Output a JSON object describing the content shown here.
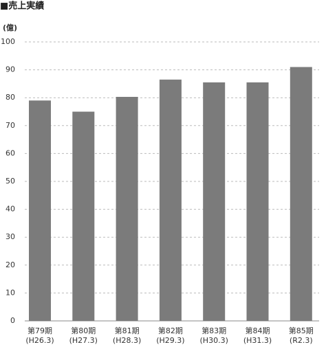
{
  "chart_data": {
    "type": "bar",
    "title": "■売上実績",
    "y_unit": "(億)",
    "categories": [
      [
        "第79期",
        "(H26.3)"
      ],
      [
        "第80期",
        "(H27.3)"
      ],
      [
        "第81期",
        "(H28.3)"
      ],
      [
        "第82期",
        "(H29.3)"
      ],
      [
        "第83期",
        "(H30.3)"
      ],
      [
        "第84期",
        "(H31.3)"
      ],
      [
        "第85期",
        "(R2.3)"
      ]
    ],
    "values": [
      79,
      75,
      80.3,
      86.5,
      85.5,
      85.5,
      91
    ],
    "color": "#7b7b7b",
    "ylim": [
      0,
      100
    ],
    "yticks": [
      0,
      10,
      20,
      30,
      40,
      50,
      60,
      70,
      80,
      90,
      100
    ],
    "grid": true
  }
}
